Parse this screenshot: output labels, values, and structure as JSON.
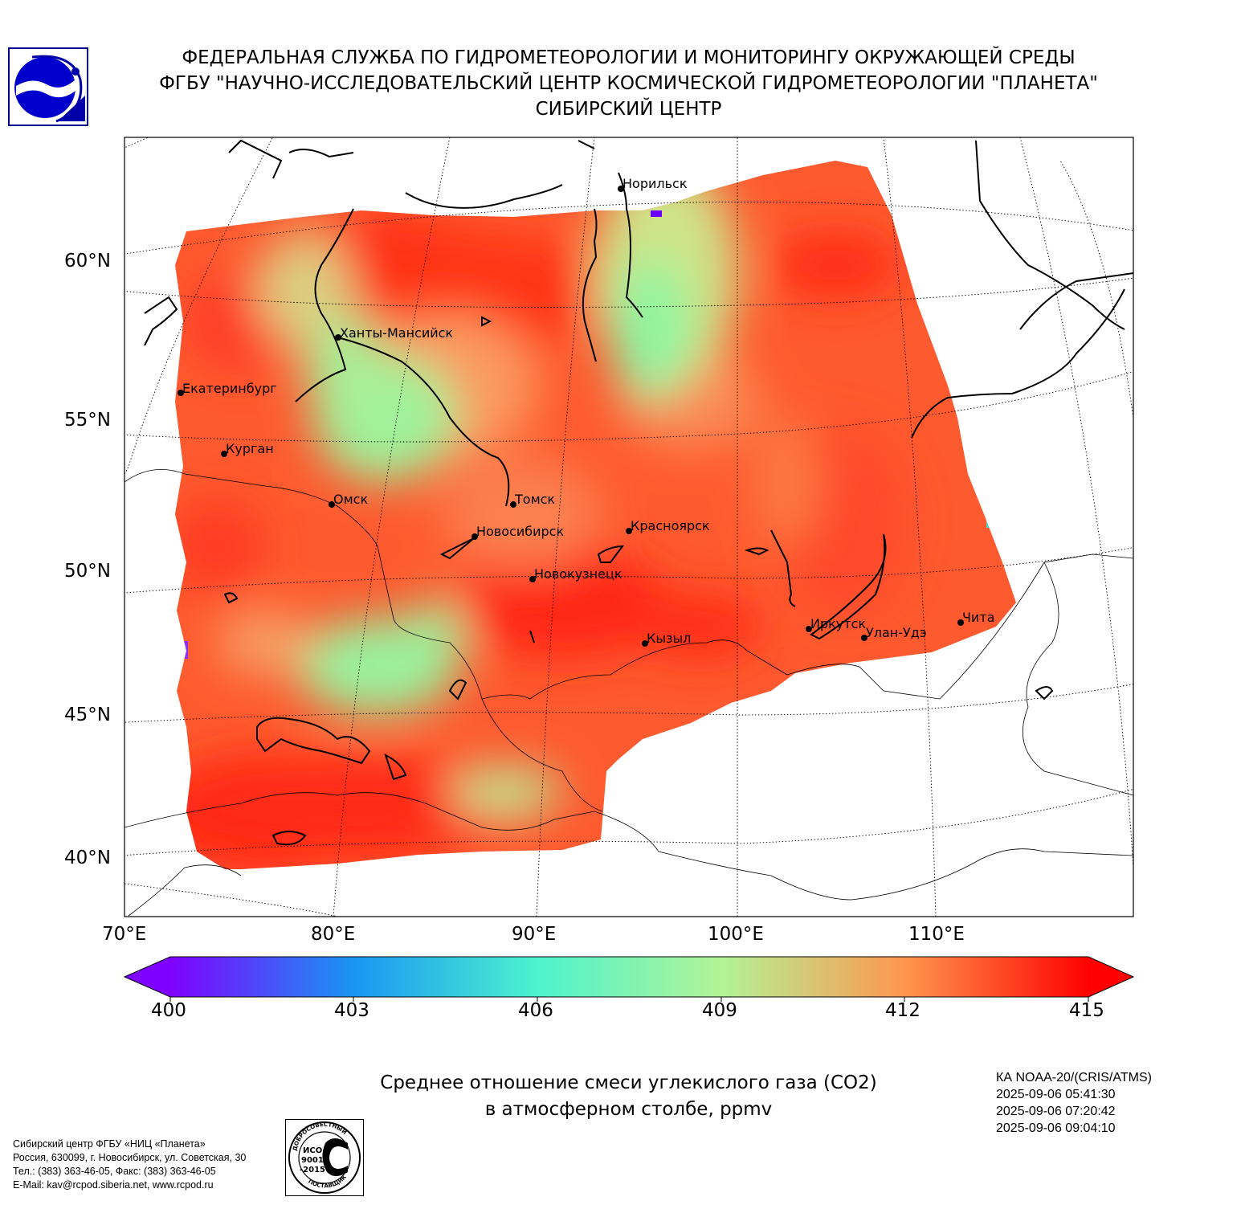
{
  "header": {
    "line1": "ФЕДЕРАЛЬНАЯ СЛУЖБА ПО ГИДРОМЕТЕОРОЛОГИИ И МОНИТОРИНГУ ОКРУЖАЮЩЕЙ СРЕДЫ",
    "line2": "ФГБУ \"НАУЧНО-ИССЛЕДОВАТЕЛЬСКИЙ ЦЕНТР КОСМИЧЕСКОЙ ГИДРОМЕТЕОРОЛОГИИ \"ПЛАНЕТА\"",
    "line3": "СИБИРСКИЙ ЦЕНТР"
  },
  "map": {
    "lat_labels": [
      "60°N",
      "55°N",
      "50°N",
      "45°N",
      "40°N"
    ],
    "lon_labels": [
      "70°E",
      "80°E",
      "90°E",
      "100°E",
      "110°E"
    ],
    "cities": [
      {
        "name": "Норильск",
        "lat": 69.3,
        "lon": 88.2
      },
      {
        "name": "Ханты-Мансийск",
        "lat": 61.0,
        "lon": 69.0
      },
      {
        "name": "Екатеринбург",
        "lat": 56.8,
        "lon": 60.6
      },
      {
        "name": "Курган",
        "lat": 55.4,
        "lon": 65.3
      },
      {
        "name": "Омск",
        "lat": 55.0,
        "lon": 73.4
      },
      {
        "name": "Томск",
        "lat": 56.5,
        "lon": 85.0
      },
      {
        "name": "Новосибирск",
        "lat": 55.0,
        "lon": 82.9
      },
      {
        "name": "Красноярск",
        "lat": 56.0,
        "lon": 92.9
      },
      {
        "name": "Новокузнецк",
        "lat": 53.8,
        "lon": 87.1
      },
      {
        "name": "Иркутск",
        "lat": 52.3,
        "lon": 104.3
      },
      {
        "name": "Кызыл",
        "lat": 51.7,
        "lon": 94.4
      },
      {
        "name": "Улан-Удэ",
        "lat": 51.8,
        "lon": 107.6
      },
      {
        "name": "Чита",
        "lat": 52.0,
        "lon": 113.5
      }
    ],
    "variable": "CO2 column-averaged mixing ratio",
    "colormap": "rainbow"
  },
  "colorbar": {
    "min": 400,
    "max": 415,
    "extend": "both",
    "ticks": [
      "400",
      "403",
      "406",
      "409",
      "412",
      "415"
    ],
    "colors": [
      "#8000ff",
      "#1996f3",
      "#4df3ce",
      "#b2f396",
      "#ff964f",
      "#ff0000"
    ]
  },
  "caption": {
    "line1": "Среднее отношение смеси углекислого газа (CO2)",
    "line2": "в атмосферном столбе, ppmv"
  },
  "satellite": {
    "name": "КА NOAA-20/(CRIS/ATMS)",
    "times": [
      "2025-09-06 05:41:30",
      "2025-09-06 07:20:42",
      "2025-09-06 09:04:10"
    ]
  },
  "address": [
    "Сибирский центр ФГБУ «НИЦ «Планета»",
    "Россия, 630099, г. Новосибирск, ул. Советская, 30",
    "Тел.: (383) 363-46-05, Факс: (383) 363-46-05",
    "E-Mail: kav@rcpod.siberia.net, www.rcpod.ru"
  ],
  "iso_badge": {
    "top": "ДОБРОСОВЕСТНЫЙ",
    "mid1": "ИСО",
    "mid2": "9001",
    "mid3": "-2015",
    "bottom": "ПОСТАВЩИК"
  }
}
